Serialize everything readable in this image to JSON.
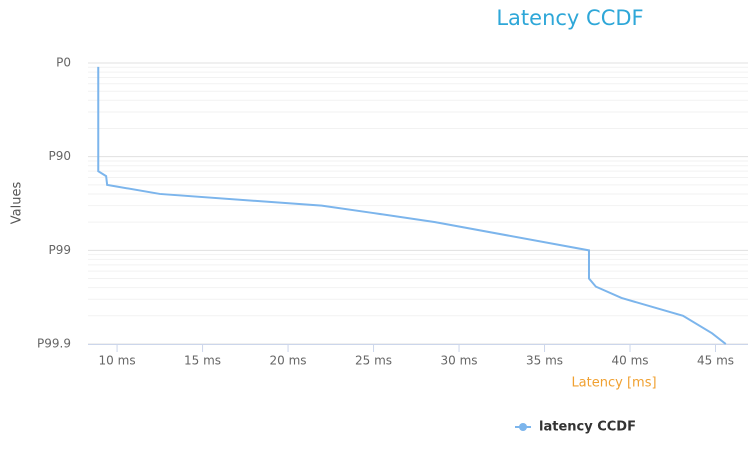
{
  "chart_data": {
    "type": "line",
    "title": "Latency CCDF",
    "x_label": "Latency [ms]",
    "y_label": "Values",
    "yscale": "log-complement",
    "xlim": [
      8.3,
      46.9
    ],
    "xticks": [
      {
        "value": 10,
        "label": "10 ms"
      },
      {
        "value": 15,
        "label": "15 ms"
      },
      {
        "value": 20,
        "label": "20 ms"
      },
      {
        "value": 25,
        "label": "25 ms"
      },
      {
        "value": 30,
        "label": "30 ms"
      },
      {
        "value": 35,
        "label": "35 ms"
      },
      {
        "value": 40,
        "label": "40 ms"
      },
      {
        "value": 45,
        "label": "45 ms"
      }
    ],
    "ylim": [
      0,
      99.9
    ],
    "yticks": [
      {
        "value": 0,
        "label": "P0"
      },
      {
        "value": 90,
        "label": "P90"
      },
      {
        "value": 99,
        "label": "P99"
      },
      {
        "value": 99.9,
        "label": "P99.9"
      }
    ],
    "minor_yticks": [
      10,
      20,
      30,
      40,
      50,
      60,
      70,
      80,
      91,
      92,
      93,
      94,
      95,
      96,
      97,
      98,
      99.1,
      99.2,
      99.3,
      99.4,
      99.5,
      99.6,
      99.7,
      99.8
    ],
    "grid": true,
    "legend": "bottom",
    "series": [
      {
        "name": "latency CCDF",
        "color": "#7cb5ec",
        "x": [
          8.9,
          8.9,
          9.36,
          9.42,
          12.5,
          21.97,
          25.0,
          28.6,
          37.6,
          37.6,
          38.0,
          39.5,
          43.1,
          44.8,
          45.6
        ],
        "values": [
          9,
          93.0,
          93.8,
          95.0,
          96.0,
          97.0,
          97.5,
          98.0,
          99.0,
          99.5,
          99.59,
          99.69,
          99.8,
          99.87,
          99.9
        ]
      }
    ]
  }
}
